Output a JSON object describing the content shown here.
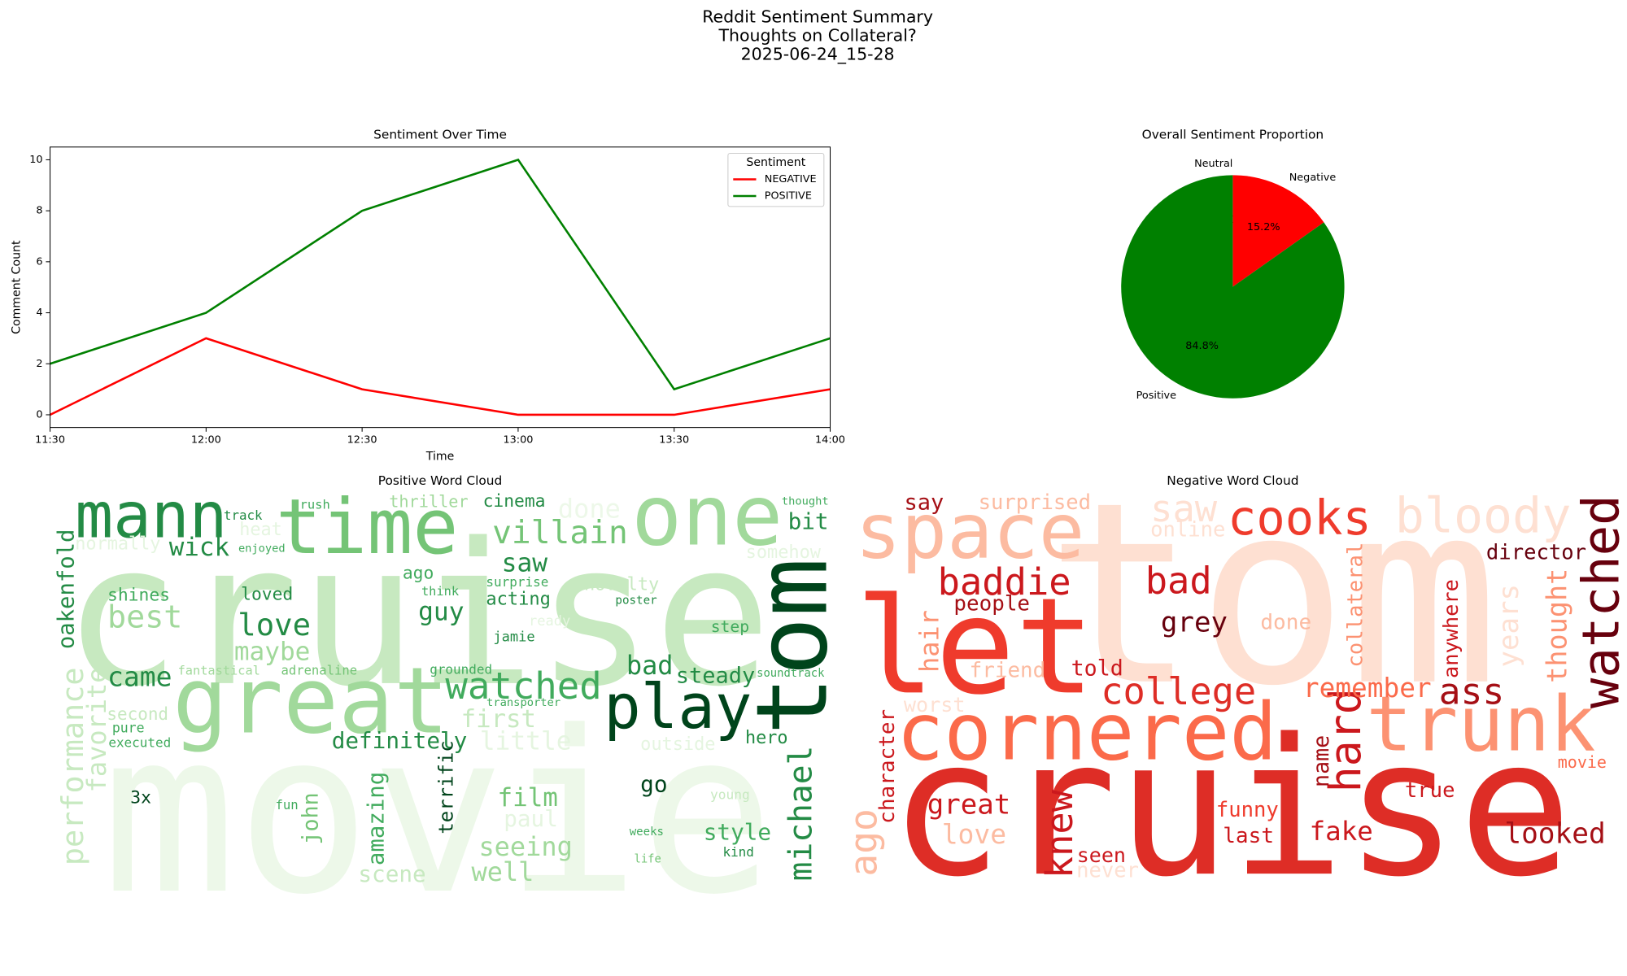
{
  "suptitle": [
    "Reddit Sentiment Summary",
    "Thoughts on Collateral?",
    "2025-06-24_15-28"
  ],
  "chart_data": [
    {
      "type": "line",
      "title": "Sentiment Over Time",
      "xlabel": "Time",
      "ylabel": "Comment Count",
      "categories": [
        "11:30",
        "12:00",
        "12:30",
        "13:00",
        "13:30",
        "14:00"
      ],
      "ylim": [
        -0.5,
        10.5
      ],
      "yticks": [
        0,
        2,
        4,
        6,
        8,
        10
      ],
      "legend_title": "Sentiment",
      "legend": "upper right",
      "series": [
        {
          "name": "NEGATIVE",
          "color": "#ff0000",
          "values": [
            0,
            3,
            1,
            0,
            0,
            1
          ]
        },
        {
          "name": "POSITIVE",
          "color": "#008000",
          "values": [
            2,
            4,
            8,
            10,
            1,
            3
          ]
        }
      ]
    },
    {
      "type": "pie",
      "title": "Overall Sentiment Proportion",
      "categories": [
        "Neutral",
        "Negative",
        "Positive"
      ],
      "values": [
        0.0,
        15.2,
        84.8
      ],
      "value_labels": [
        "0.0%",
        "15.2%",
        "84.8%"
      ],
      "colors": [
        "#808080",
        "#ff0000",
        "#008000"
      ],
      "start_angle": 90,
      "counterclock": false
    },
    {
      "type": "wordcloud",
      "title": "Positive Word Cloud",
      "words": [
        {
          "text": "cruise",
          "color": "#c7e9c0"
        },
        {
          "text": "movie",
          "color": "#edf8e9"
        },
        {
          "text": "great",
          "color": "#a1d99b"
        },
        {
          "text": "one",
          "color": "#a1d99b"
        },
        {
          "text": "time",
          "color": "#74c476"
        },
        {
          "text": "mann",
          "color": "#238b45"
        },
        {
          "text": "tom",
          "color": "#00441b"
        },
        {
          "text": "play",
          "color": "#00441b"
        },
        {
          "text": "watched",
          "color": "#41ab5d"
        },
        {
          "text": "villain",
          "color": "#74c476"
        },
        {
          "text": "saw",
          "color": "#238b45"
        },
        {
          "text": "love",
          "color": "#238b45"
        },
        {
          "text": "best",
          "color": "#a1d99b"
        },
        {
          "text": "wick",
          "color": "#238b45"
        },
        {
          "text": "bit",
          "color": "#238b45"
        },
        {
          "text": "guy",
          "color": "#238b45"
        },
        {
          "text": "came",
          "color": "#238b45"
        },
        {
          "text": "maybe",
          "color": "#a1d99b"
        },
        {
          "text": "bad",
          "color": "#238b45"
        },
        {
          "text": "steady",
          "color": "#238b45"
        },
        {
          "text": "first",
          "color": "#c7e9c0"
        },
        {
          "text": "definitely",
          "color": "#238b45"
        },
        {
          "text": "little",
          "color": "#e5f5e0"
        },
        {
          "text": "go",
          "color": "#00441b"
        },
        {
          "text": "film",
          "color": "#74c476"
        },
        {
          "text": "style",
          "color": "#41ab5d"
        },
        {
          "text": "seeing",
          "color": "#a1d99b"
        },
        {
          "text": "well",
          "color": "#a1d99b"
        },
        {
          "text": "michael",
          "color": "#238b45"
        },
        {
          "text": "amazing",
          "color": "#41ab5d"
        },
        {
          "text": "john",
          "color": "#74c476"
        },
        {
          "text": "terrific",
          "color": "#00441b"
        },
        {
          "text": "performance",
          "color": "#c7e9c0"
        },
        {
          "text": "favorite",
          "color": "#c7e9c0"
        },
        {
          "text": "oakenfold",
          "color": "#238b45"
        },
        {
          "text": "shines",
          "color": "#41ab5d"
        },
        {
          "text": "loved",
          "color": "#238b45"
        },
        {
          "text": "thriller",
          "color": "#a1d99b"
        },
        {
          "text": "cinema",
          "color": "#238b45"
        },
        {
          "text": "acting",
          "color": "#238b45"
        },
        {
          "text": "jamie",
          "color": "#238b45"
        },
        {
          "text": "ago",
          "color": "#41ab5d"
        },
        {
          "text": "ready",
          "color": "#e5f5e0"
        },
        {
          "text": "novelty",
          "color": "#c7e9c0"
        },
        {
          "text": "step",
          "color": "#41ab5d"
        },
        {
          "text": "hero",
          "color": "#238b45"
        },
        {
          "text": "3x",
          "color": "#00441b"
        },
        {
          "text": "normally",
          "color": "#e5f5e0"
        },
        {
          "text": "heat",
          "color": "#e5f5e0"
        },
        {
          "text": "track",
          "color": "#238b45"
        },
        {
          "text": "rush",
          "color": "#41ab5d"
        },
        {
          "text": "done",
          "color": "#edf8e9"
        },
        {
          "text": "somehow",
          "color": "#e5f5e0"
        },
        {
          "text": "soundtrack",
          "color": "#41ab5d"
        },
        {
          "text": "transporter",
          "color": "#41ab5d"
        },
        {
          "text": "grounded",
          "color": "#41ab5d"
        },
        {
          "text": "adrenaline",
          "color": "#74c476"
        },
        {
          "text": "fantastical",
          "color": "#a1d99b"
        },
        {
          "text": "second",
          "color": "#c7e9c0"
        },
        {
          "text": "pure",
          "color": "#41ab5d"
        },
        {
          "text": "executed",
          "color": "#41ab5d"
        },
        {
          "text": "paul",
          "color": "#e5f5e0"
        },
        {
          "text": "scene",
          "color": "#c7e9c0"
        },
        {
          "text": "outside",
          "color": "#e5f5e0"
        },
        {
          "text": "young",
          "color": "#c7e9c0"
        },
        {
          "text": "kind",
          "color": "#238b45"
        },
        {
          "text": "weeks",
          "color": "#41ab5d"
        },
        {
          "text": "life",
          "color": "#74c476"
        },
        {
          "text": "fun",
          "color": "#41ab5d"
        },
        {
          "text": "surprise",
          "color": "#41ab5d"
        },
        {
          "text": "thought",
          "color": "#41ab5d"
        },
        {
          "text": "enjoyed",
          "color": "#41ab5d"
        },
        {
          "text": "think",
          "color": "#41ab5d"
        },
        {
          "text": "poster",
          "color": "#238b45"
        }
      ]
    },
    {
      "type": "wordcloud",
      "title": "Negative Word Cloud",
      "words": [
        {
          "text": "tom",
          "color": "#fee0d2"
        },
        {
          "text": "cruise",
          "color": "#de2d26"
        },
        {
          "text": "let",
          "color": "#ef3b2c"
        },
        {
          "text": "space",
          "color": "#fcbba1"
        },
        {
          "text": "cornered",
          "color": "#fb6a4a"
        },
        {
          "text": "trunk",
          "color": "#fc9272"
        },
        {
          "text": "cooks",
          "color": "#ef3b2c"
        },
        {
          "text": "bloody",
          "color": "#fee0d2"
        },
        {
          "text": "watched",
          "color": "#67000d"
        },
        {
          "text": "college",
          "color": "#de2d26"
        },
        {
          "text": "baddie",
          "color": "#cb181d"
        },
        {
          "text": "bad",
          "color": "#cb181d"
        },
        {
          "text": "grey",
          "color": "#67000d"
        },
        {
          "text": "hard",
          "color": "#cb181d"
        },
        {
          "text": "knew",
          "color": "#cb181d"
        },
        {
          "text": "remember",
          "color": "#fb6a4a"
        },
        {
          "text": "ass",
          "color": "#a50f15"
        },
        {
          "text": "fake",
          "color": "#cb181d"
        },
        {
          "text": "looked",
          "color": "#a50f15"
        },
        {
          "text": "great",
          "color": "#cb181d"
        },
        {
          "text": "love",
          "color": "#fcbba1"
        },
        {
          "text": "saw",
          "color": "#fee0d2"
        },
        {
          "text": "director",
          "color": "#67000d"
        },
        {
          "text": "years",
          "color": "#fee0d2"
        },
        {
          "text": "thought",
          "color": "#fc9272"
        },
        {
          "text": "collateral",
          "color": "#fc9272"
        },
        {
          "text": "anywhere",
          "color": "#cb181d"
        },
        {
          "text": "say",
          "color": "#a50f15"
        },
        {
          "text": "surprised",
          "color": "#fcbba1"
        },
        {
          "text": "online",
          "color": "#fee0d2"
        },
        {
          "text": "people",
          "color": "#a50f15"
        },
        {
          "text": "hair",
          "color": "#fc9272"
        },
        {
          "text": "friend",
          "color": "#fcbba1"
        },
        {
          "text": "told",
          "color": "#cb181d"
        },
        {
          "text": "done",
          "color": "#fcbba1"
        },
        {
          "text": "worst",
          "color": "#fee0d2"
        },
        {
          "text": "character",
          "color": "#cb181d"
        },
        {
          "text": "ago",
          "color": "#fcbba1"
        },
        {
          "text": "name",
          "color": "#a50f15"
        },
        {
          "text": "true",
          "color": "#cb181d"
        },
        {
          "text": "movie",
          "color": "#fb6a4a"
        },
        {
          "text": "funny",
          "color": "#ef3b2c"
        },
        {
          "text": "last",
          "color": "#cb181d"
        },
        {
          "text": "seen",
          "color": "#cb181d"
        },
        {
          "text": "never",
          "color": "#fee0d2"
        }
      ]
    }
  ]
}
